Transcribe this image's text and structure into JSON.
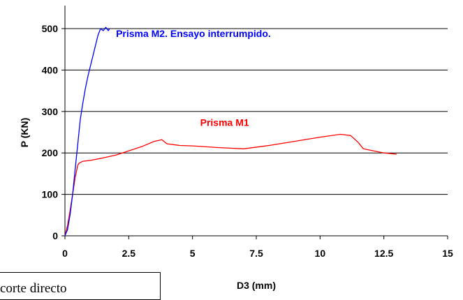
{
  "chart_data": {
    "type": "line",
    "xlabel": "D3 (mm)",
    "ylabel": "P (KN)",
    "xlim": [
      0,
      15
    ],
    "ylim": [
      0,
      500
    ],
    "x_ticks": [
      "0",
      "2.5",
      "5",
      "7.5",
      "10",
      "12.5",
      "15"
    ],
    "y_ticks": [
      "0",
      "100",
      "200",
      "300",
      "400",
      "500"
    ],
    "grid": "horizontal",
    "series": [
      {
        "name": "Prisma M1",
        "color": "#ff0000",
        "x": [
          0,
          0.1,
          0.2,
          0.3,
          0.4,
          0.5,
          0.55,
          0.7,
          1.0,
          1.5,
          2.0,
          2.5,
          3.0,
          3.5,
          3.8,
          4.0,
          4.5,
          5.0,
          6.0,
          7.0,
          8.0,
          9.0,
          10.0,
          10.8,
          11.2,
          11.5,
          11.7,
          12.5,
          13.0
        ],
        "y": [
          0,
          25,
          60,
          100,
          140,
          170,
          175,
          180,
          182,
          188,
          195,
          205,
          215,
          228,
          232,
          222,
          218,
          217,
          213,
          210,
          218,
          228,
          238,
          245,
          242,
          225,
          210,
          200,
          197
        ]
      },
      {
        "name": "Prisma M2. Ensayo interrumpido.",
        "color": "#0000ff",
        "x": [
          0,
          0.1,
          0.2,
          0.3,
          0.4,
          0.5,
          0.6,
          0.7,
          0.8,
          0.9,
          1.0,
          1.1,
          1.2,
          1.3,
          1.4,
          1.5,
          1.6,
          1.7,
          1.75
        ],
        "y": [
          0,
          15,
          50,
          100,
          160,
          220,
          280,
          320,
          355,
          385,
          410,
          435,
          460,
          485,
          500,
          495,
          503,
          495,
          500
        ]
      }
    ],
    "annotations": [
      {
        "text": "Prisma M2. Ensayo interrumpido.",
        "x": 2.0,
        "y": 480,
        "color": "#0000ff"
      },
      {
        "text": "Prisma M1",
        "x": 5.3,
        "y": 265,
        "color": "#ff0000"
      }
    ]
  },
  "caption": "corte directo"
}
